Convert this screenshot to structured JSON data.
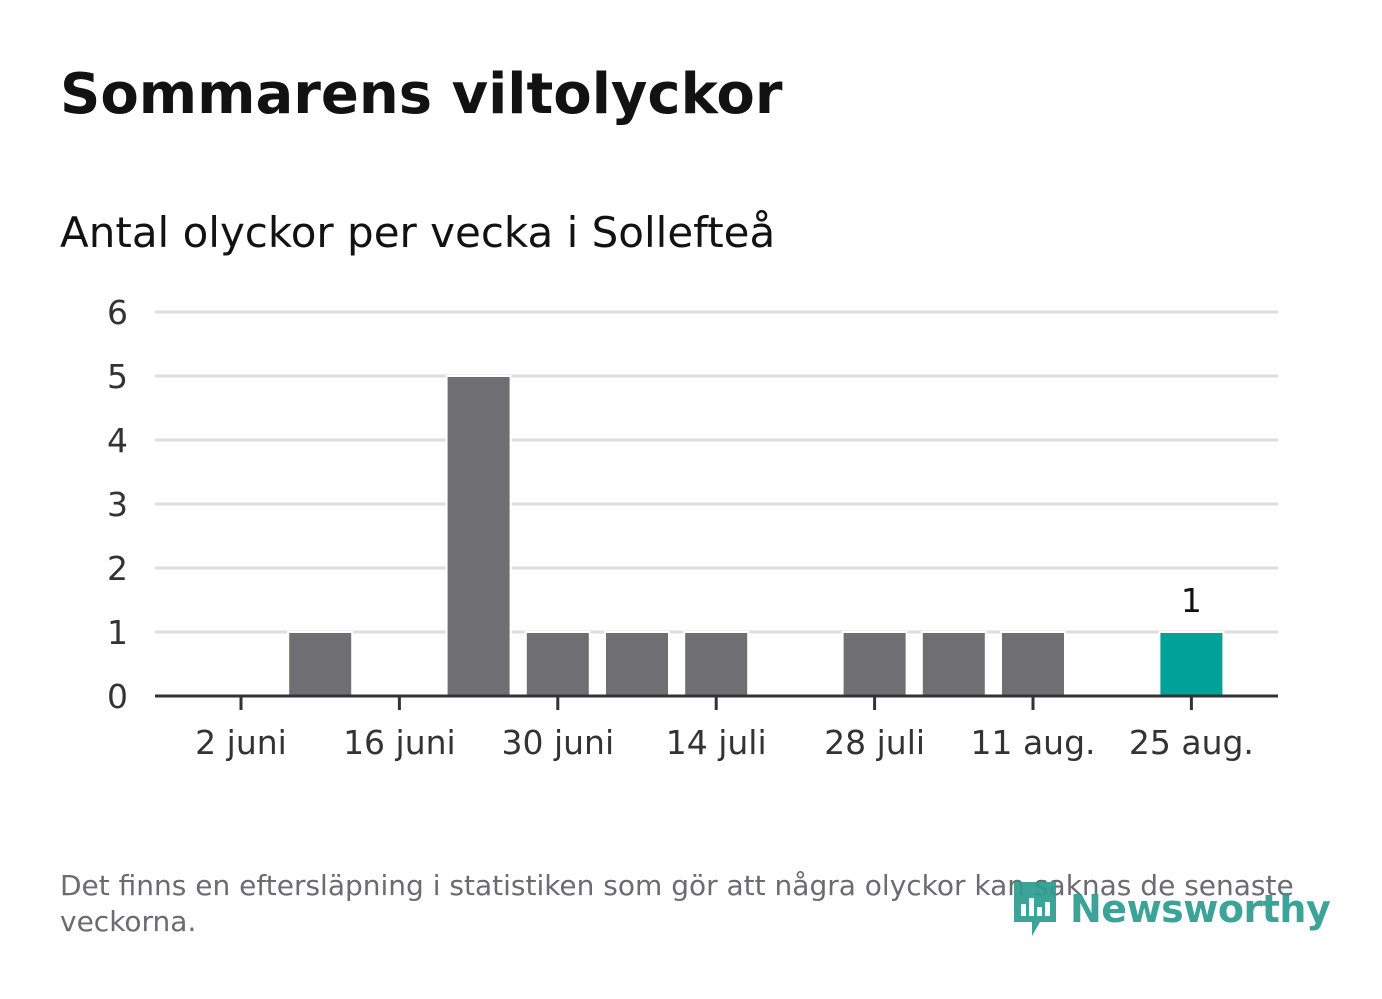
{
  "header": {
    "title": "Sommarens viltolyckor",
    "subtitle": "Antal olyckor per vecka i Sollefteå"
  },
  "chart_data": {
    "type": "bar",
    "title": "Sommarens viltolyckor",
    "subtitle": "Antal olyckor per vecka i Sollefteå",
    "xlabel": "",
    "ylabel": "",
    "ylim": [
      0,
      6
    ],
    "y_ticks": [
      0,
      1,
      2,
      3,
      4,
      5,
      6
    ],
    "x_tick_labels": [
      "2 juni",
      "16 juni",
      "30 juni",
      "14 juli",
      "28 juli",
      "11 aug.",
      "25 aug."
    ],
    "grid": true,
    "weeks": 13,
    "values": [
      0,
      1,
      0,
      5,
      1,
      1,
      1,
      0,
      1,
      1,
      1,
      0,
      1
    ],
    "highlight_index": 12,
    "data_labels": [
      {
        "index": 12,
        "text": "1"
      }
    ],
    "colors": {
      "bar": "#6f6e73",
      "highlight": "#00a196",
      "grid": "#dddddd",
      "axis": "#333333"
    }
  },
  "footer": {
    "note": "Det finns en eftersläpning i statistiken som gör att några olyckor kan saknas de senaste veckorna.",
    "brand": "Newsworthy",
    "brand_color": "#2b9c8f",
    "brand_icon": "newsworthy-logo-icon"
  }
}
